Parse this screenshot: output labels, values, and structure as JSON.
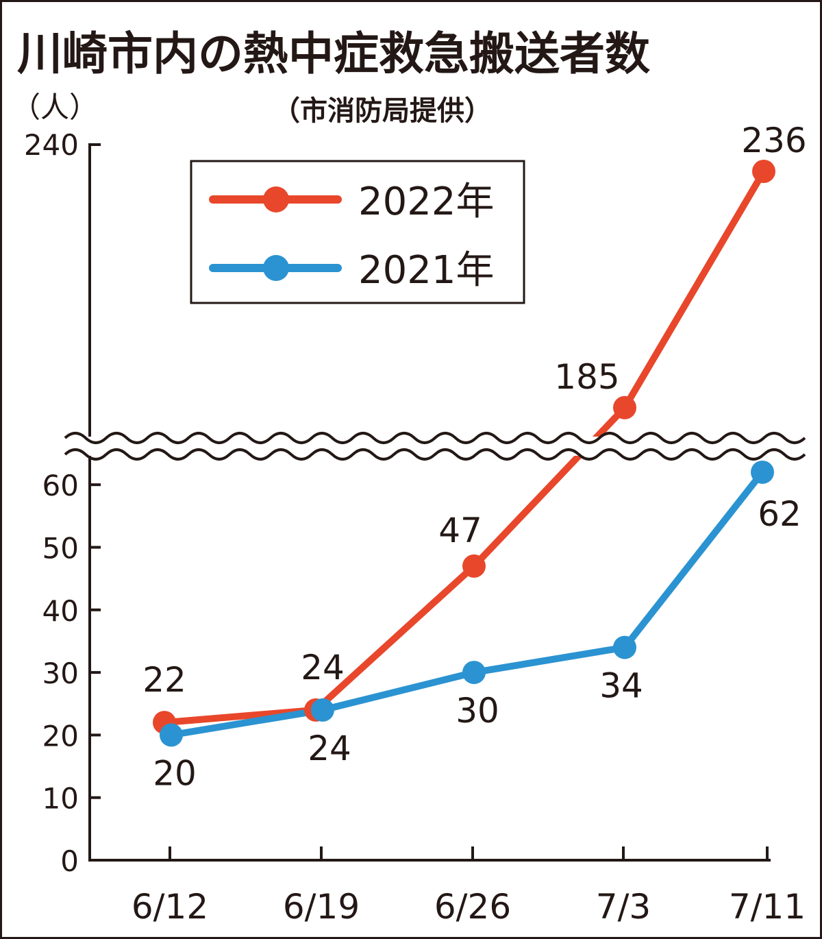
{
  "chart_data": {
    "type": "line",
    "title": "川崎市内の熱中症救急搬送者数",
    "subtitle": "（市消防局提供）",
    "ylabel": "（人）",
    "xlabel": "",
    "categories": [
      "6/12",
      "6/19",
      "6/26",
      "7/3",
      "7/11"
    ],
    "y_ticks": [
      "0",
      "10",
      "20",
      "30",
      "40",
      "50",
      "60"
    ],
    "y_top_tick": "240",
    "ylim": [
      0,
      240
    ],
    "axis_break": [
      65,
      180
    ],
    "grid": false,
    "legend_position": "top-left",
    "series": [
      {
        "name": "2022年",
        "color": "#e8472b",
        "values": [
          22,
          24,
          47,
          185,
          236
        ],
        "labels": [
          "22",
          "24",
          "47",
          "185",
          "236"
        ]
      },
      {
        "name": "2021年",
        "color": "#2b93d1",
        "values": [
          20,
          24,
          30,
          34,
          62
        ],
        "labels": [
          "20",
          "24",
          "30",
          "34",
          "62"
        ]
      }
    ]
  }
}
